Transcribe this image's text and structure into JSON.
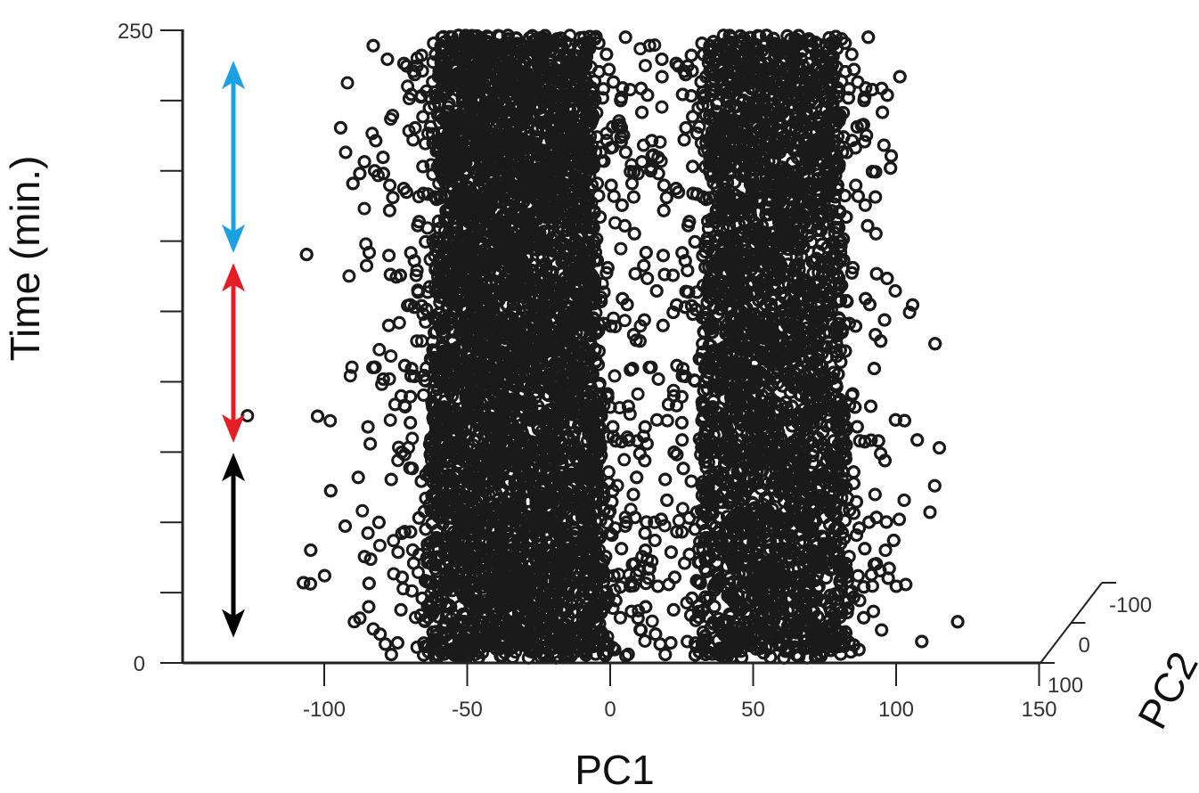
{
  "chart_data": {
    "type": "scatter",
    "title": "",
    "xlabel": "PC1",
    "ylabel": "Time (min.)",
    "zlabel": "PC2",
    "x_ticks": [
      -100,
      -50,
      0,
      50,
      100,
      150
    ],
    "y_ticks": [
      0,
      250
    ],
    "y_minor_tick_count": 9,
    "z_ticks": [
      -100,
      0,
      100
    ],
    "xlim": [
      -150,
      150
    ],
    "ylim": [
      0,
      250
    ],
    "zlim": [
      -100,
      100
    ],
    "grid": false,
    "marker": "open-circle",
    "marker_color": "#1a1a1a",
    "clusters": [
      {
        "center_pc1": -33,
        "spread_pc1": 15,
        "core_width_pc1": 52,
        "time_range": [
          2,
          248
        ],
        "point_count": 9000
      },
      {
        "center_pc1": 57,
        "spread_pc1": 13,
        "core_width_pc1": 44,
        "time_range": [
          2,
          248
        ],
        "point_count": 8000
      }
    ],
    "phase_arrows": [
      {
        "color": "#000000",
        "time_range": [
          10,
          83
        ]
      },
      {
        "color": "#e31e24",
        "time_range": [
          87,
          158
        ]
      },
      {
        "color": "#1ba1e2",
        "time_range": [
          162,
          238
        ]
      }
    ]
  }
}
